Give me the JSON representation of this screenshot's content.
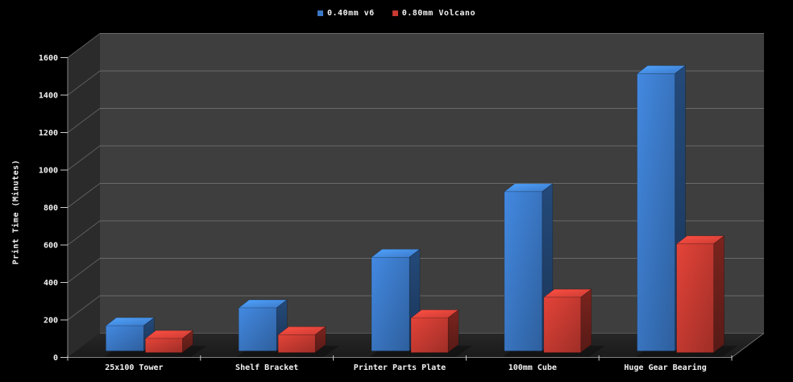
{
  "legend": {
    "items": [
      {
        "label": "0.40mm v6",
        "color": "#3a77c4"
      },
      {
        "label": "0.80mm Volcano",
        "color": "#c63a31"
      }
    ]
  },
  "y_axis": {
    "title": "Print Time (Minutes)",
    "min": 0,
    "max": 1600,
    "tick_step": 200
  },
  "x_axis": {
    "categories": [
      "25x100 Tower",
      "Shelf Bracket",
      "Printer Parts Plate",
      "100mm Cube",
      "Huge Gear Bearing"
    ]
  },
  "chart_data": {
    "type": "bar",
    "subtype": "3d-clustered-column",
    "title": "",
    "categories": [
      "25x100 Tower",
      "Shelf Bracket",
      "Printer Parts Plate",
      "100mm Cube",
      "Huge Gear Bearing"
    ],
    "series": [
      {
        "name": "0.40mm v6",
        "color": "#3a77c4",
        "values": [
          135,
          230,
          500,
          850,
          1480
        ]
      },
      {
        "name": "0.80mm Volcano",
        "color": "#c63a31",
        "values": [
          75,
          95,
          185,
          295,
          580
        ]
      }
    ],
    "xlabel": "",
    "ylabel": "Print Time (Minutes)",
    "ylim": [
      0,
      1600
    ],
    "ytick_step": 200,
    "ytick_labels": [
      "0",
      "200",
      "400",
      "600",
      "800",
      "1000",
      "1200",
      "1400",
      "1600"
    ],
    "grid": true,
    "legend_position": "top-center",
    "theme": {
      "background": "#000000",
      "back_wall": "#3e3e3e",
      "side_wall": "#2b2b2b",
      "floor_back": "#343434",
      "floor_front": "#1a1a1a",
      "gridline": "#6a6a6a",
      "side_gridline": "#5e5e5e",
      "axis_edge": "#858585",
      "tick": "#cccccc",
      "text": "#f2f2f2"
    }
  }
}
